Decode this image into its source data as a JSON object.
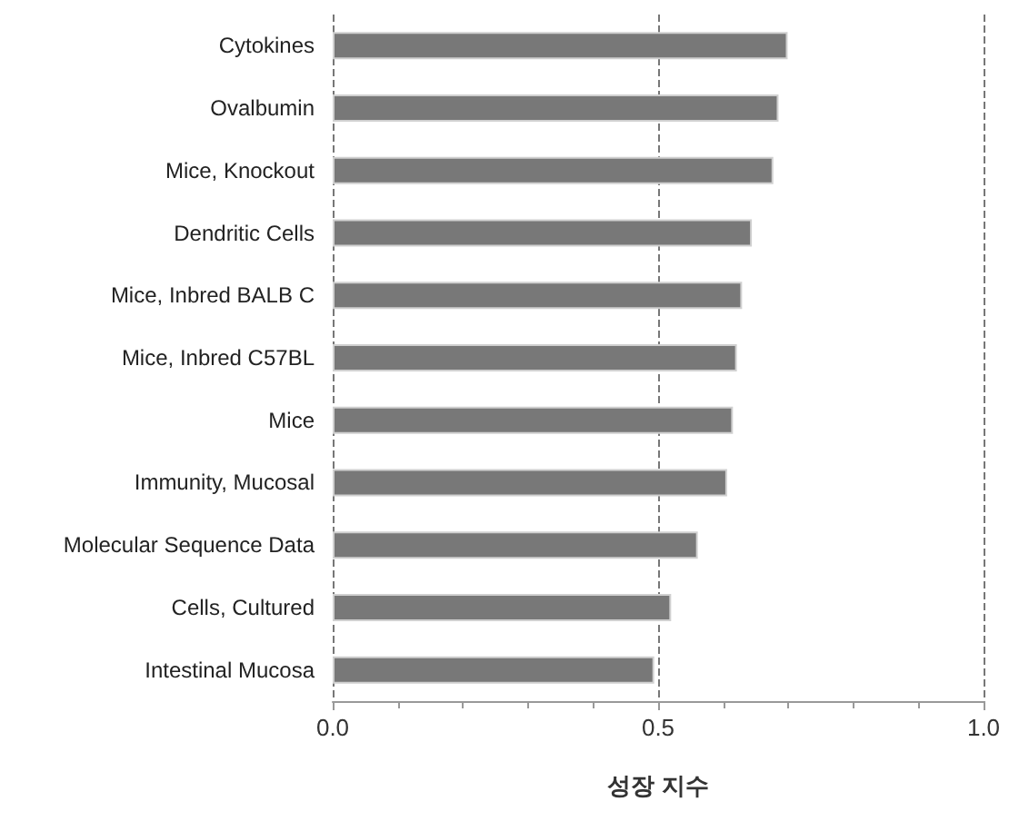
{
  "chart_data": {
    "type": "bar",
    "orientation": "horizontal",
    "xlabel": "성장 지수",
    "categories": [
      "Cytokines",
      "Ovalbumin",
      "Mice, Knockout",
      "Dendritic Cells",
      "Mice, Inbred BALB C",
      "Mice, Inbred C57BL",
      "Mice",
      "Immunity, Mucosal",
      "Molecular Sequence Data",
      "Cells, Cultured",
      "Intestinal Mucosa"
    ],
    "values": [
      0.699,
      0.685,
      0.677,
      0.644,
      0.629,
      0.621,
      0.615,
      0.606,
      0.561,
      0.52,
      0.494
    ],
    "color": "#787878",
    "xlim": [
      0,
      1
    ],
    "xticks": [
      {
        "value": 0,
        "label": "0.0"
      },
      {
        "value": 0.5,
        "label": "0.5"
      },
      {
        "value": 1,
        "label": "1.0"
      }
    ],
    "grid": "x"
  }
}
